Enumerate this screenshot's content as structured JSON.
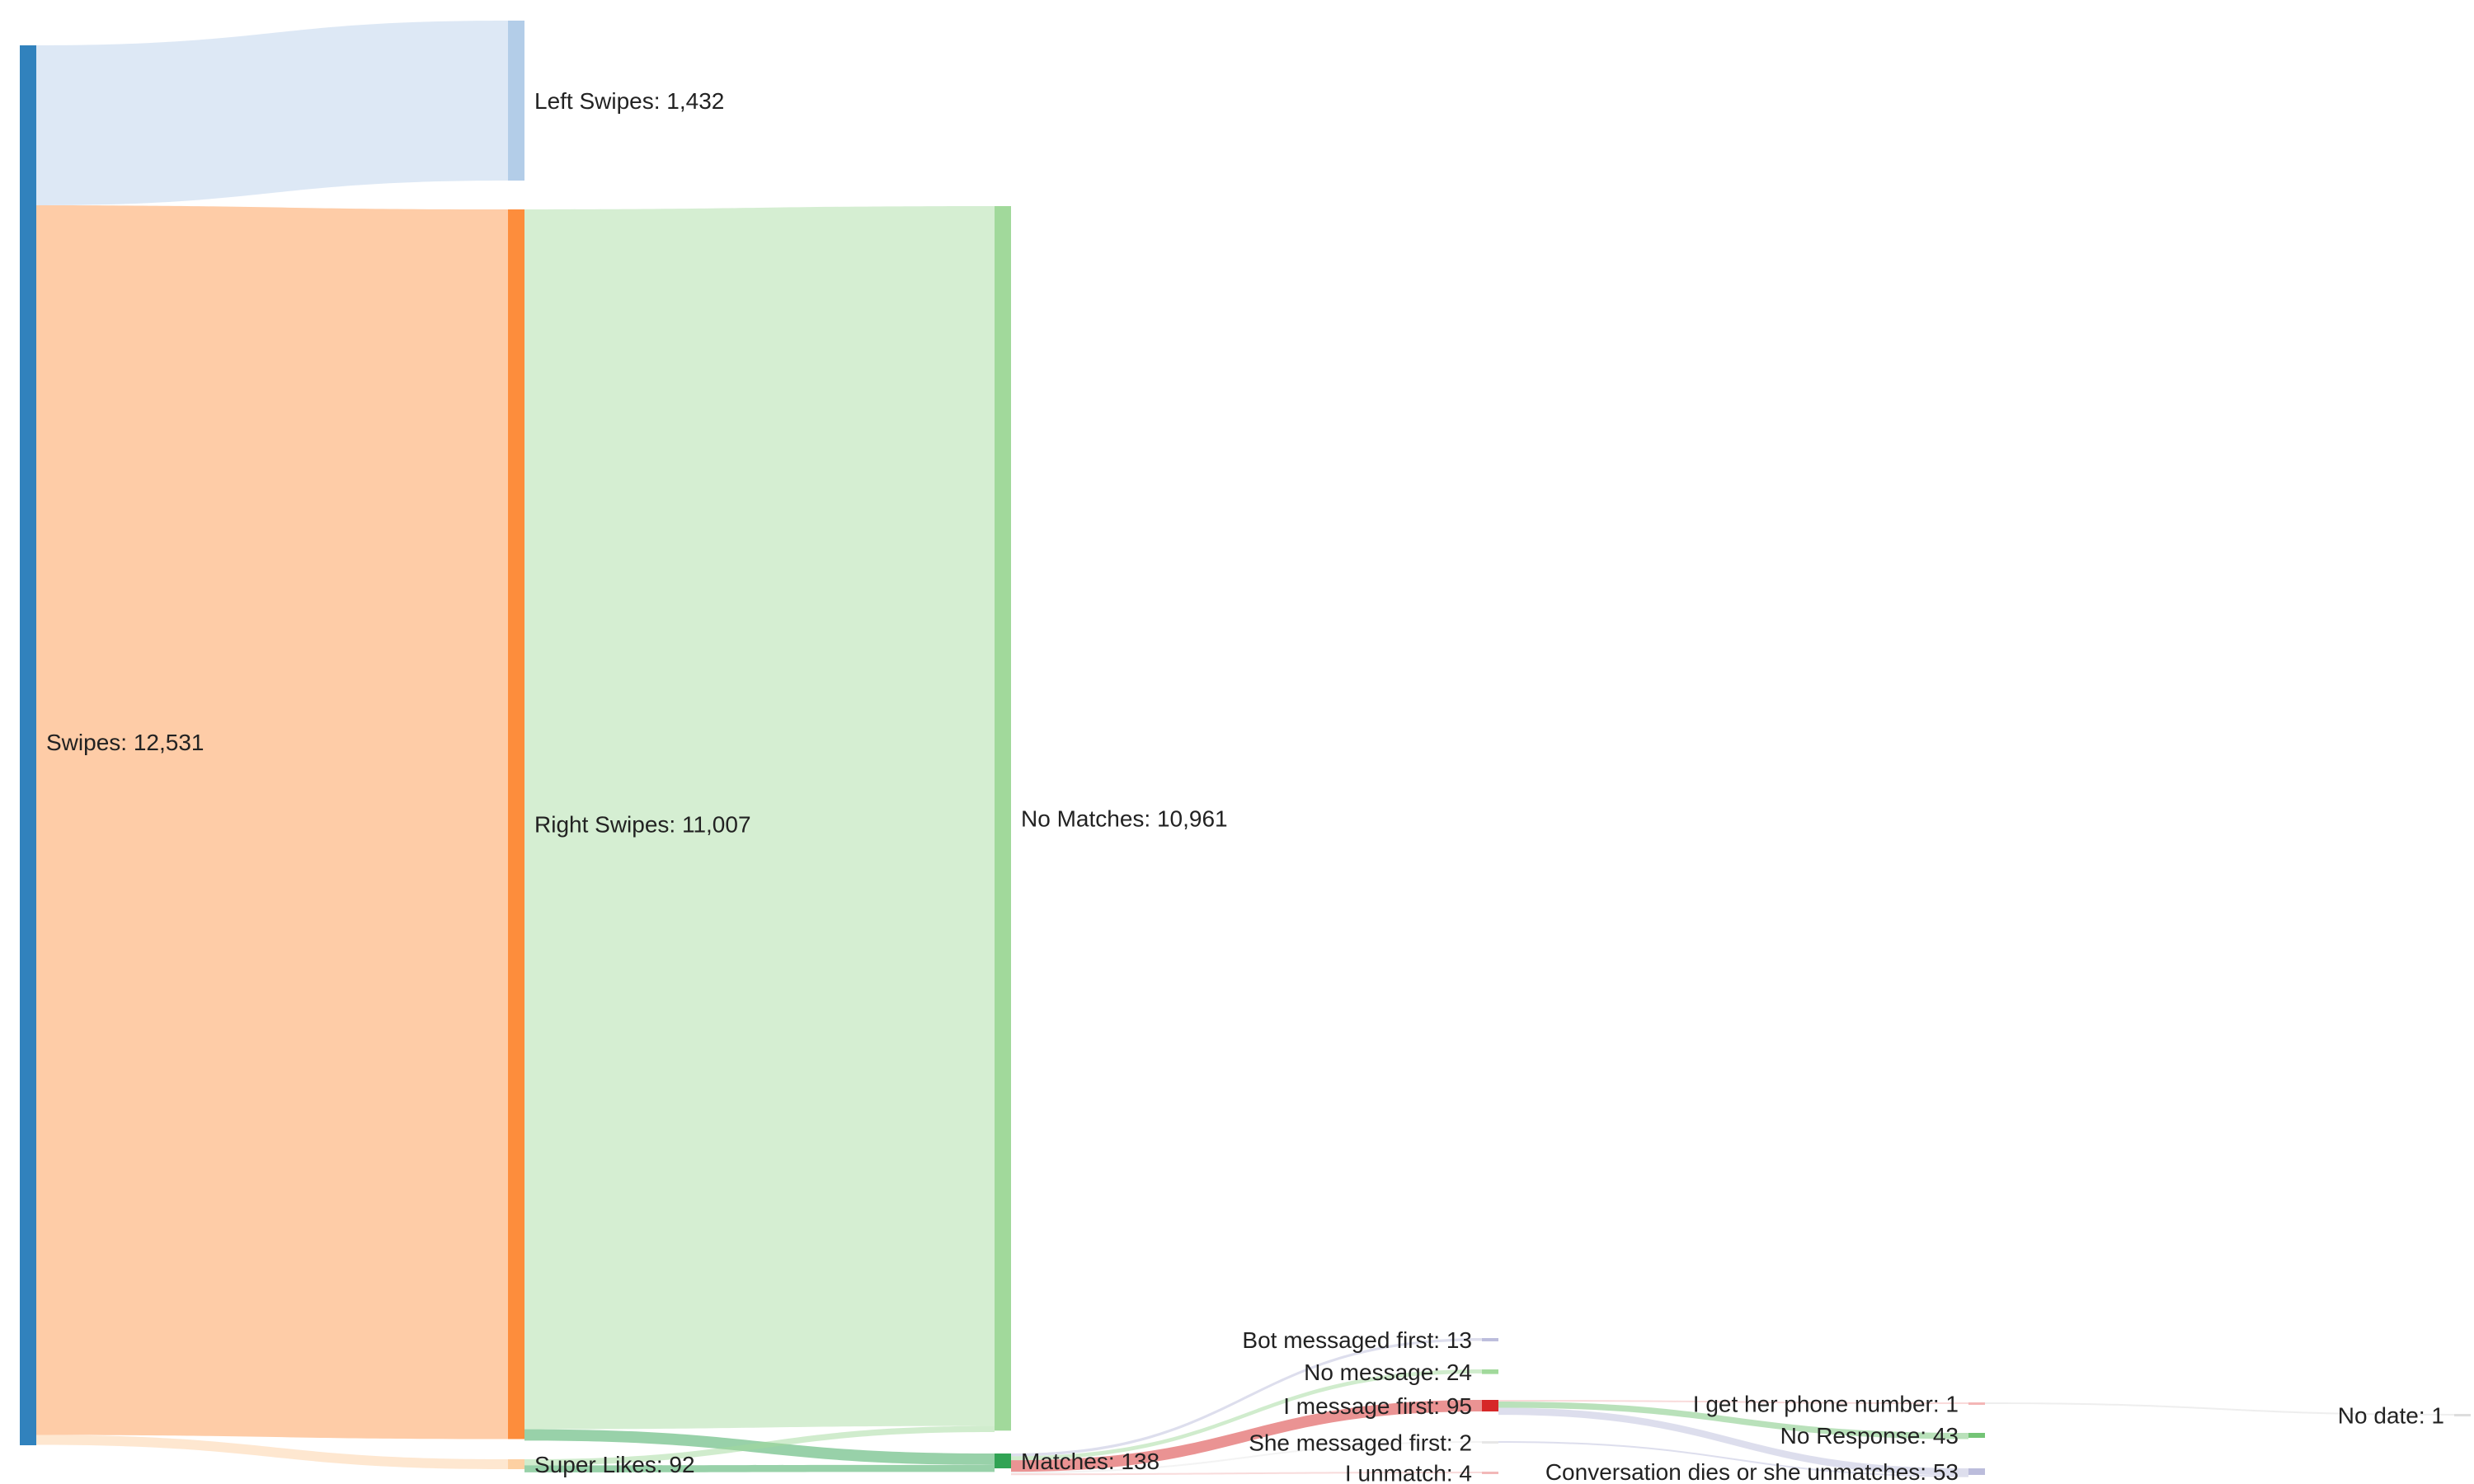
{
  "chart_data": {
    "type": "sankey",
    "nodes": [
      {
        "id": "swipes",
        "label": "Swipes: 12,531",
        "value": 12531,
        "color": "#3182bd"
      },
      {
        "id": "left",
        "label": "Left Swipes: 1,432",
        "value": 1432,
        "color": "#b3cde8"
      },
      {
        "id": "right",
        "label": "Right Swipes: 11,007",
        "value": 11007,
        "color": "#fd8d3c"
      },
      {
        "id": "super",
        "label": "Super Likes: 92",
        "value": 92,
        "color": "#fdd0a2"
      },
      {
        "id": "nomatch",
        "label": "No Matches: 10,961",
        "value": 10961,
        "color": "#a1d99b"
      },
      {
        "id": "matches",
        "label": "Matches: 138",
        "value": 138,
        "color": "#31a354"
      },
      {
        "id": "bot",
        "label": "Bot messaged first: 13",
        "value": 13,
        "color": "#bcbddc"
      },
      {
        "id": "nomsg",
        "label": "No message: 24",
        "value": 24,
        "color": "#a1d99b"
      },
      {
        "id": "imsg",
        "label": "I message first: 95",
        "value": 95,
        "color": "#d62728"
      },
      {
        "id": "she",
        "label": "She messaged first: 2",
        "value": 2,
        "color": "#e7e7e7"
      },
      {
        "id": "unmatch",
        "label": "I unmatch: 4",
        "value": 4,
        "color": "#f2b8b8"
      },
      {
        "id": "phone",
        "label": "I get her phone number: 1",
        "value": 1,
        "color": "#f4b6b6"
      },
      {
        "id": "noresp",
        "label": "No Response: 43",
        "value": 43,
        "color": "#74c476"
      },
      {
        "id": "dies",
        "label": "Conversation dies or she unmatches: 53",
        "value": 53,
        "color": "#bcbddc"
      },
      {
        "id": "nodate",
        "label": "No date: 1",
        "value": 1,
        "color": "#dddddd"
      }
    ],
    "links": [
      {
        "source": "swipes",
        "target": "left",
        "value": 1432
      },
      {
        "source": "swipes",
        "target": "right",
        "value": 11007
      },
      {
        "source": "swipes",
        "target": "super",
        "value": 92
      },
      {
        "source": "right",
        "target": "nomatch",
        "value": 10919
      },
      {
        "source": "right",
        "target": "matches",
        "value": 88
      },
      {
        "source": "super",
        "target": "nomatch",
        "value": 42
      },
      {
        "source": "super",
        "target": "matches",
        "value": 50
      },
      {
        "source": "matches",
        "target": "bot",
        "value": 13
      },
      {
        "source": "matches",
        "target": "nomsg",
        "value": 24
      },
      {
        "source": "matches",
        "target": "imsg",
        "value": 95
      },
      {
        "source": "matches",
        "target": "she",
        "value": 2
      },
      {
        "source": "matches",
        "target": "unmatch",
        "value": 4
      },
      {
        "source": "imsg",
        "target": "phone",
        "value": 1
      },
      {
        "source": "imsg",
        "target": "noresp",
        "value": 43
      },
      {
        "source": "imsg",
        "target": "dies",
        "value": 51
      },
      {
        "source": "she",
        "target": "dies",
        "value": 2
      },
      {
        "source": "phone",
        "target": "nodate",
        "value": 1
      }
    ]
  }
}
